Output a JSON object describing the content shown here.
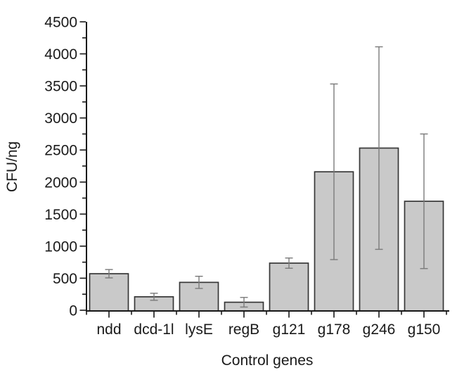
{
  "chart_data": {
    "type": "bar",
    "title": "",
    "xlabel": "Control genes",
    "ylabel": "CFU/ng",
    "categories": [
      "ndd",
      "dcd-1l",
      "lysE",
      "regB",
      "g121",
      "g178",
      "g246",
      "g150"
    ],
    "values": [
      570,
      210,
      435,
      125,
      735,
      2160,
      2530,
      1700
    ],
    "error_bars": [
      65,
      55,
      95,
      75,
      80,
      1370,
      1580,
      1050
    ],
    "ylim": [
      0,
      4500
    ],
    "y_major_step": 500,
    "y_minor_step": 250,
    "y_tick_labels": [
      "0",
      "500",
      "1000",
      "1500",
      "2000",
      "2500",
      "3000",
      "3500",
      "4000",
      "4500"
    ],
    "grid": false,
    "legend": null,
    "colors": {
      "bar_fill": "#c9c9c9",
      "bar_border": "#373737",
      "error_bar": "#7a7a7a",
      "axis": "#181818",
      "text": "#1a1a1a",
      "background": "#ffffff"
    }
  }
}
